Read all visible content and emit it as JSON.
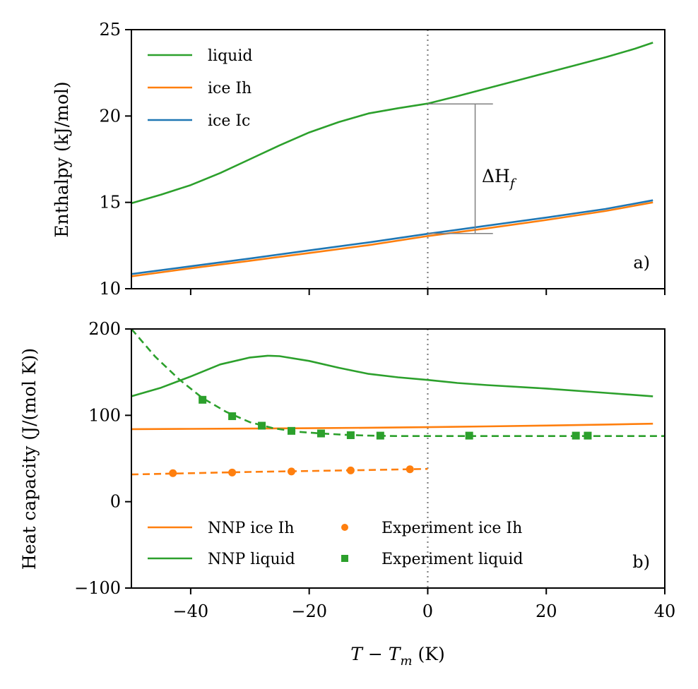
{
  "chart_data": [
    {
      "type": "line",
      "panel": "a)",
      "ylabel": "Enthalpy (kJ/mol)",
      "xlim": [
        -50,
        40
      ],
      "ylim": [
        10,
        25
      ],
      "xticks": [
        -40,
        -20,
        0,
        20,
        40
      ],
      "yticks": [
        10,
        15,
        20,
        25
      ],
      "vline_x": 0,
      "annotation": {
        "label": "ΔH",
        "subscript": "f",
        "x": 8,
        "y_low": 13.2,
        "y_high": 20.7
      },
      "legend": [
        "liquid",
        "ice Ih",
        "ice Ic"
      ],
      "series": [
        {
          "name": "liquid",
          "color": "#2ca02c",
          "x": [
            -50,
            -45,
            -40,
            -35,
            -30,
            -25,
            -20,
            -15,
            -10,
            -5,
            0,
            5,
            10,
            15,
            20,
            25,
            30,
            35,
            38
          ],
          "y": [
            14.95,
            15.45,
            16.0,
            16.7,
            17.5,
            18.3,
            19.05,
            19.65,
            20.15,
            20.45,
            20.72,
            21.15,
            21.6,
            22.05,
            22.5,
            22.95,
            23.4,
            23.9,
            24.25
          ]
        },
        {
          "name": "ice Ih",
          "color": "#ff7f0e",
          "x": [
            -50,
            -40,
            -30,
            -20,
            -10,
            0,
            10,
            20,
            30,
            38
          ],
          "y": [
            10.72,
            11.18,
            11.62,
            12.07,
            12.52,
            13.05,
            13.5,
            13.98,
            14.5,
            15.0
          ]
        },
        {
          "name": "ice Ic",
          "color": "#1f77b4",
          "x": [
            -50,
            -40,
            -30,
            -20,
            -10,
            0,
            10,
            20,
            30,
            38
          ],
          "y": [
            10.85,
            11.3,
            11.75,
            12.22,
            12.68,
            13.18,
            13.65,
            14.12,
            14.62,
            15.12
          ]
        }
      ]
    },
    {
      "type": "line",
      "panel": "b)",
      "xlabel": "T − T",
      "xlabel_subscript": "m",
      "xlabel_unit": " (K)",
      "ylabel": "Heat capacity (J/(mol K))",
      "xlim": [
        -50,
        40
      ],
      "ylim": [
        -100,
        200
      ],
      "xticks": [
        -40,
        -20,
        0,
        20,
        40
      ],
      "yticks": [
        -100,
        0,
        100,
        200
      ],
      "vline_x": 0,
      "legend": [
        "NNP ice Ih",
        "NNP liquid",
        "Experiment ice Ih",
        "Experiment liquid"
      ],
      "series": [
        {
          "name": "NNP ice Ih",
          "color": "#ff7f0e",
          "style": "solid",
          "x": [
            -50,
            -40,
            -30,
            -20,
            -10,
            0,
            10,
            20,
            30,
            38
          ],
          "y": [
            84,
            84.3,
            84.7,
            85.1,
            85.6,
            86.3,
            87.2,
            88.2,
            89.3,
            90.3
          ]
        },
        {
          "name": "NNP liquid",
          "color": "#2ca02c",
          "style": "solid",
          "x": [
            -50,
            -45,
            -40,
            -35,
            -30,
            -27,
            -25,
            -20,
            -15,
            -10,
            -5,
            0,
            5,
            10,
            20,
            30,
            38
          ],
          "y": [
            122,
            132,
            145,
            159,
            167,
            169,
            168.5,
            163,
            155,
            148,
            144,
            141,
            137.5,
            135,
            131,
            126,
            122
          ]
        },
        {
          "name": "Experiment liquid fit",
          "color": "#2ca02c",
          "style": "dashed",
          "x": [
            -50,
            -46,
            -42,
            -38,
            -34,
            -30,
            -26,
            -22,
            -18,
            -14,
            -10,
            -5,
            0,
            10,
            20,
            30,
            40
          ],
          "y": [
            200,
            168,
            142,
            120,
            104,
            92,
            85,
            81,
            79,
            77.5,
            76.5,
            76,
            76,
            76,
            76,
            76,
            76
          ]
        },
        {
          "name": "Experiment ice Ih fit",
          "color": "#ff7f0e",
          "style": "dashed",
          "x": [
            -50,
            -40,
            -30,
            -20,
            -10,
            0
          ],
          "y": [
            31.5,
            33,
            34.5,
            35.5,
            36.7,
            38
          ]
        },
        {
          "name": "Experiment ice Ih",
          "color": "#ff7f0e",
          "style": "points",
          "marker": "circle",
          "x": [
            -43,
            -33,
            -23,
            -13,
            -3
          ],
          "y": [
            33,
            33.8,
            35,
            36.2,
            37.5
          ]
        },
        {
          "name": "Experiment liquid",
          "color": "#2ca02c",
          "style": "points",
          "marker": "square",
          "x": [
            -38,
            -33,
            -28,
            -23,
            -18,
            -13,
            -8,
            7,
            25,
            27
          ],
          "y": [
            118,
            99,
            88,
            82,
            79,
            77,
            76.5,
            76.5,
            76.5,
            76.5
          ]
        }
      ]
    }
  ]
}
